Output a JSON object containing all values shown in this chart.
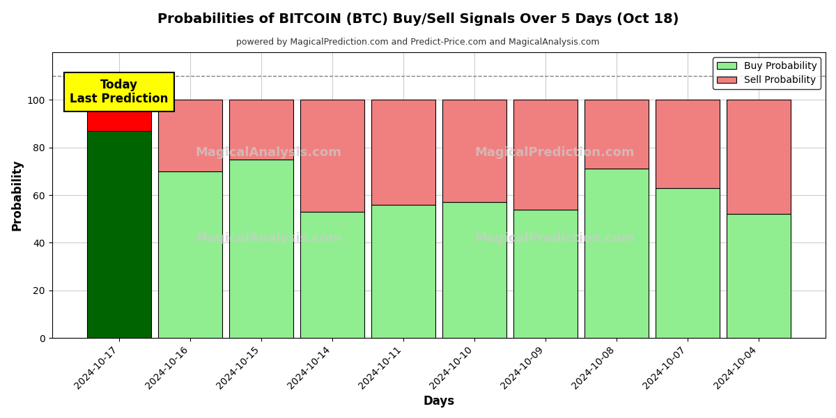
{
  "title": "Probabilities of BITCOIN (BTC) Buy/Sell Signals Over 5 Days (Oct 18)",
  "subtitle": "powered by MagicalPrediction.com and Predict-Price.com and MagicalAnalysis.com",
  "xlabel": "Days",
  "ylabel": "Probability",
  "dates": [
    "2024-10-17",
    "2024-10-16",
    "2024-10-15",
    "2024-10-14",
    "2024-10-11",
    "2024-10-10",
    "2024-10-09",
    "2024-10-08",
    "2024-10-07",
    "2024-10-04"
  ],
  "buy_values": [
    87,
    70,
    75,
    53,
    56,
    57,
    54,
    71,
    63,
    52
  ],
  "sell_values": [
    13,
    30,
    25,
    47,
    44,
    43,
    46,
    29,
    37,
    48
  ],
  "today_buy_color": "#006400",
  "today_sell_color": "#FF0000",
  "buy_color": "#90EE90",
  "sell_color": "#F08080",
  "bar_edge_color": "#000000",
  "ylim": [
    0,
    120
  ],
  "yticks": [
    0,
    20,
    40,
    60,
    80,
    100
  ],
  "dashed_line_y": 110,
  "legend_buy_label": "Buy Probability",
  "legend_sell_label": "Sell Probability",
  "today_label": "Today\nLast Prediction",
  "background_color": "#ffffff",
  "grid_color": "#cccccc"
}
